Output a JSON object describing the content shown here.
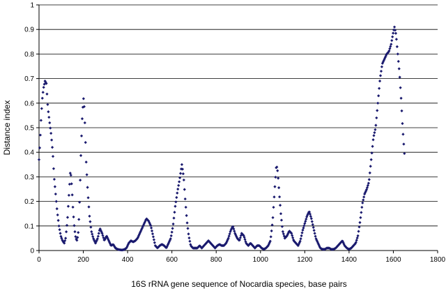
{
  "chart_data": {
    "type": "scatter",
    "title": "",
    "xlabel": "16S rRNA gene sequence of Nocardia species, base pairs",
    "ylabel": "Distance index",
    "xlim": [
      0,
      1800
    ],
    "ylim": [
      0,
      1
    ],
    "xticks": [
      "0",
      "200",
      "400",
      "600",
      "800",
      "1000",
      "1200",
      "1400",
      "1600",
      "1800"
    ],
    "yticks": [
      "0",
      "0.1",
      "0.2",
      "0.3",
      "0.4",
      "0.5",
      "0.6",
      "0.7",
      "0.8",
      "0.9",
      "1"
    ],
    "grid": "horizontal",
    "marker": "diamond",
    "marker_color": "#1a1a6e",
    "series": [
      {
        "profile": [
          [
            0,
            0.37
          ],
          [
            5,
            0.45
          ],
          [
            10,
            0.55
          ],
          [
            15,
            0.62
          ],
          [
            20,
            0.66
          ],
          [
            27,
            0.69
          ],
          [
            33,
            0.68
          ],
          [
            40,
            0.58
          ],
          [
            48,
            0.52
          ],
          [
            55,
            0.47
          ],
          [
            62,
            0.4
          ],
          [
            68,
            0.3
          ],
          [
            75,
            0.23
          ],
          [
            82,
            0.16
          ],
          [
            90,
            0.1
          ],
          [
            98,
            0.06
          ],
          [
            106,
            0.04
          ],
          [
            114,
            0.03
          ],
          [
            120,
            0.05
          ],
          [
            128,
            0.12
          ],
          [
            136,
            0.24
          ],
          [
            142,
            0.33
          ],
          [
            148,
            0.26
          ],
          [
            154,
            0.16
          ],
          [
            160,
            0.09
          ],
          [
            166,
            0.05
          ],
          [
            172,
            0.04
          ],
          [
            178,
            0.08
          ],
          [
            184,
            0.22
          ],
          [
            190,
            0.42
          ],
          [
            196,
            0.56
          ],
          [
            202,
            0.63
          ],
          [
            207,
            0.52
          ],
          [
            213,
            0.36
          ],
          [
            220,
            0.24
          ],
          [
            228,
            0.14
          ],
          [
            236,
            0.08
          ],
          [
            245,
            0.05
          ],
          [
            255,
            0.03
          ],
          [
            265,
            0.05
          ],
          [
            275,
            0.09
          ],
          [
            285,
            0.07
          ],
          [
            295,
            0.04
          ],
          [
            305,
            0.06
          ],
          [
            315,
            0.04
          ],
          [
            325,
            0.02
          ],
          [
            335,
            0.025
          ],
          [
            345,
            0.01
          ],
          [
            355,
            0.005
          ],
          [
            365,
            0.003
          ],
          [
            375,
            0.002
          ],
          [
            385,
            0.004
          ],
          [
            395,
            0.01
          ],
          [
            405,
            0.03
          ],
          [
            415,
            0.04
          ],
          [
            425,
            0.035
          ],
          [
            435,
            0.04
          ],
          [
            445,
            0.05
          ],
          [
            455,
            0.07
          ],
          [
            465,
            0.09
          ],
          [
            475,
            0.11
          ],
          [
            485,
            0.13
          ],
          [
            495,
            0.12
          ],
          [
            505,
            0.1
          ],
          [
            515,
            0.06
          ],
          [
            525,
            0.02
          ],
          [
            535,
            0.01
          ],
          [
            545,
            0.02
          ],
          [
            555,
            0.025
          ],
          [
            565,
            0.02
          ],
          [
            575,
            0.01
          ],
          [
            585,
            0.03
          ],
          [
            595,
            0.05
          ],
          [
            605,
            0.1
          ],
          [
            615,
            0.18
          ],
          [
            625,
            0.24
          ],
          [
            635,
            0.29
          ],
          [
            645,
            0.35
          ],
          [
            653,
            0.3
          ],
          [
            660,
            0.21
          ],
          [
            668,
            0.12
          ],
          [
            676,
            0.06
          ],
          [
            685,
            0.02
          ],
          [
            695,
            0.01
          ],
          [
            705,
            0.01
          ],
          [
            715,
            0.01
          ],
          [
            725,
            0.02
          ],
          [
            735,
            0.01
          ],
          [
            745,
            0.02
          ],
          [
            755,
            0.03
          ],
          [
            765,
            0.04
          ],
          [
            775,
            0.03
          ],
          [
            785,
            0.02
          ],
          [
            795,
            0.01
          ],
          [
            805,
            0.02
          ],
          [
            815,
            0.025
          ],
          [
            825,
            0.02
          ],
          [
            835,
            0.02
          ],
          [
            845,
            0.03
          ],
          [
            855,
            0.05
          ],
          [
            865,
            0.08
          ],
          [
            875,
            0.1
          ],
          [
            885,
            0.07
          ],
          [
            895,
            0.05
          ],
          [
            905,
            0.04
          ],
          [
            915,
            0.07
          ],
          [
            925,
            0.06
          ],
          [
            935,
            0.03
          ],
          [
            945,
            0.02
          ],
          [
            955,
            0.03
          ],
          [
            965,
            0.02
          ],
          [
            975,
            0.01
          ],
          [
            985,
            0.02
          ],
          [
            995,
            0.02
          ],
          [
            1005,
            0.01
          ],
          [
            1015,
            0.005
          ],
          [
            1025,
            0.01
          ],
          [
            1035,
            0.02
          ],
          [
            1045,
            0.04
          ],
          [
            1055,
            0.12
          ],
          [
            1065,
            0.26
          ],
          [
            1072,
            0.35
          ],
          [
            1078,
            0.32
          ],
          [
            1085,
            0.23
          ],
          [
            1092,
            0.15
          ],
          [
            1100,
            0.08
          ],
          [
            1110,
            0.05
          ],
          [
            1120,
            0.06
          ],
          [
            1130,
            0.08
          ],
          [
            1140,
            0.07
          ],
          [
            1150,
            0.04
          ],
          [
            1160,
            0.03
          ],
          [
            1170,
            0.02
          ],
          [
            1180,
            0.04
          ],
          [
            1190,
            0.08
          ],
          [
            1200,
            0.11
          ],
          [
            1210,
            0.14
          ],
          [
            1220,
            0.16
          ],
          [
            1230,
            0.13
          ],
          [
            1240,
            0.09
          ],
          [
            1250,
            0.05
          ],
          [
            1260,
            0.03
          ],
          [
            1270,
            0.01
          ],
          [
            1280,
            0.005
          ],
          [
            1290,
            0.005
          ],
          [
            1300,
            0.01
          ],
          [
            1310,
            0.01
          ],
          [
            1320,
            0.005
          ],
          [
            1330,
            0.005
          ],
          [
            1340,
            0.01
          ],
          [
            1350,
            0.02
          ],
          [
            1360,
            0.03
          ],
          [
            1370,
            0.04
          ],
          [
            1380,
            0.02
          ],
          [
            1390,
            0.01
          ],
          [
            1400,
            0.005
          ],
          [
            1410,
            0.01
          ],
          [
            1420,
            0.02
          ],
          [
            1430,
            0.03
          ],
          [
            1440,
            0.06
          ],
          [
            1450,
            0.12
          ],
          [
            1460,
            0.19
          ],
          [
            1470,
            0.23
          ],
          [
            1480,
            0.25
          ],
          [
            1490,
            0.28
          ],
          [
            1500,
            0.37
          ],
          [
            1510,
            0.46
          ],
          [
            1520,
            0.5
          ],
          [
            1530,
            0.6
          ],
          [
            1540,
            0.7
          ],
          [
            1550,
            0.76
          ],
          [
            1560,
            0.78
          ],
          [
            1570,
            0.8
          ],
          [
            1580,
            0.81
          ],
          [
            1590,
            0.84
          ],
          [
            1600,
            0.89
          ],
          [
            1605,
            0.91
          ],
          [
            1612,
            0.88
          ],
          [
            1620,
            0.8
          ],
          [
            1628,
            0.72
          ],
          [
            1635,
            0.62
          ],
          [
            1642,
            0.5
          ],
          [
            1648,
            0.42
          ],
          [
            1652,
            0.37
          ]
        ]
      }
    ]
  }
}
